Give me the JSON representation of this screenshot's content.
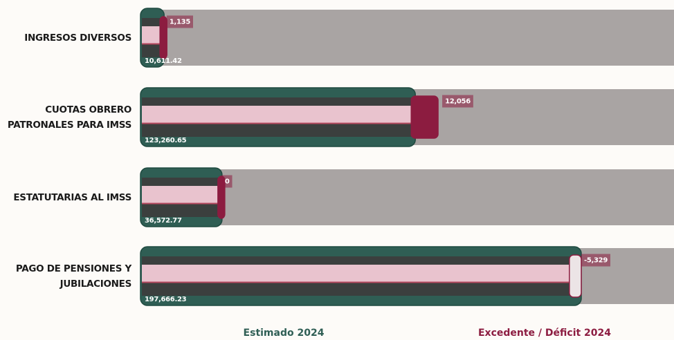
{
  "chart_data": {
    "type": "bar",
    "orientation": "horizontal",
    "categories": [
      "INGRESOS DIVERSOS",
      "CUOTAS OBRERO\nPATRONALES PARA IMSS",
      "ESTATUTARIAS AL IMSS",
      "PAGO DE PENSIONES Y\nJUBILACIONES"
    ],
    "series": [
      {
        "name": "Estimado 2024",
        "color": "#2f5e54",
        "values": [
          10611.42,
          123260.65,
          36572.77,
          197666.23
        ],
        "value_labels": [
          "10,611.42",
          "123,260.65",
          "36,572.77",
          "197,666.23"
        ]
      },
      {
        "name": "Excedente / Déficit 2024",
        "color": "#8c1c40",
        "values": [
          1135,
          12056,
          0,
          -5329
        ],
        "value_labels": [
          "1,135",
          "12,056",
          "0",
          "-5,329"
        ]
      }
    ]
  }
}
